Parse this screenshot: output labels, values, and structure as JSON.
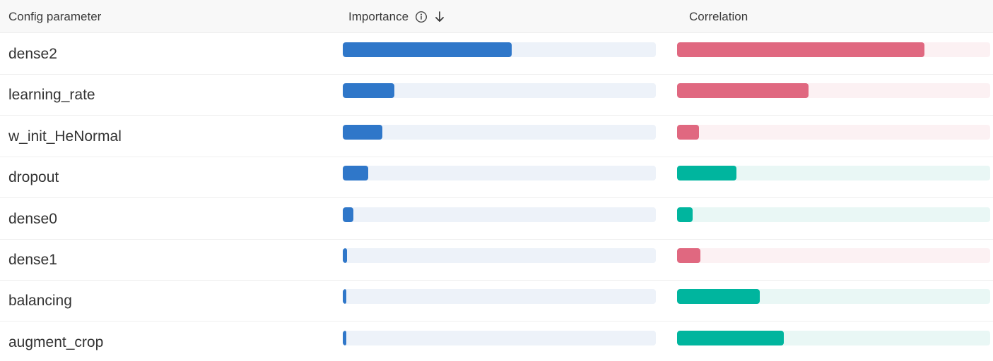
{
  "header": {
    "param_label": "Config parameter",
    "importance_label": "Importance",
    "correlation_label": "Correlation",
    "info_icon": "info-icon",
    "sort_icon": "arrow-down-icon"
  },
  "colors": {
    "importance": "#2f77c9",
    "importance_track": "#edf2f9",
    "correlation_positive": "#e06880",
    "correlation_positive_track": "#fcf1f3",
    "correlation_negative": "#00b59e",
    "correlation_negative_track": "#e9f7f5"
  },
  "rows": [
    {
      "param": "dense2",
      "importance": 0.54,
      "correlation": 0.79,
      "correlation_sign": "positive"
    },
    {
      "param": "learning_rate",
      "importance": 0.165,
      "correlation": 0.42,
      "correlation_sign": "positive"
    },
    {
      "param": "w_init_HeNormal",
      "importance": 0.127,
      "correlation": 0.07,
      "correlation_sign": "positive"
    },
    {
      "param": "dropout",
      "importance": 0.082,
      "correlation": 0.19,
      "correlation_sign": "negative"
    },
    {
      "param": "dense0",
      "importance": 0.033,
      "correlation": 0.05,
      "correlation_sign": "negative"
    },
    {
      "param": "dense1",
      "importance": 0.014,
      "correlation": 0.075,
      "correlation_sign": "positive"
    },
    {
      "param": "balancing",
      "importance": 0.009,
      "correlation": 0.265,
      "correlation_sign": "negative"
    },
    {
      "param": "augment_crop",
      "importance": 0.009,
      "correlation": 0.34,
      "correlation_sign": "negative"
    }
  ]
}
